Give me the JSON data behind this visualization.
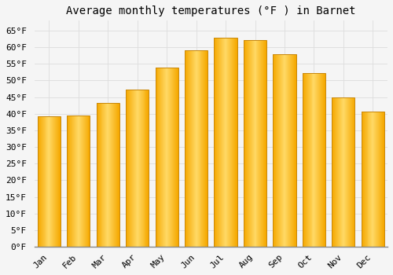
{
  "title": "Average monthly temperatures (°F ) in Barnet",
  "months": [
    "Jan",
    "Feb",
    "Mar",
    "Apr",
    "May",
    "Jun",
    "Jul",
    "Aug",
    "Sep",
    "Oct",
    "Nov",
    "Dec"
  ],
  "values": [
    39.2,
    39.5,
    43.3,
    47.3,
    53.8,
    59.2,
    62.8,
    62.2,
    57.9,
    52.3,
    44.8,
    40.6
  ],
  "bar_color_left": "#F5A800",
  "bar_color_center": "#FFD966",
  "bar_color_right": "#F5A800",
  "bar_edge_color": "#C8870A",
  "background_color": "#F5F5F5",
  "plot_bg_color": "#F5F5F5",
  "grid_color": "#DDDDDD",
  "title_fontsize": 10,
  "tick_fontsize": 8,
  "ylim": [
    0,
    68
  ],
  "yticks": [
    0,
    5,
    10,
    15,
    20,
    25,
    30,
    35,
    40,
    45,
    50,
    55,
    60,
    65
  ]
}
